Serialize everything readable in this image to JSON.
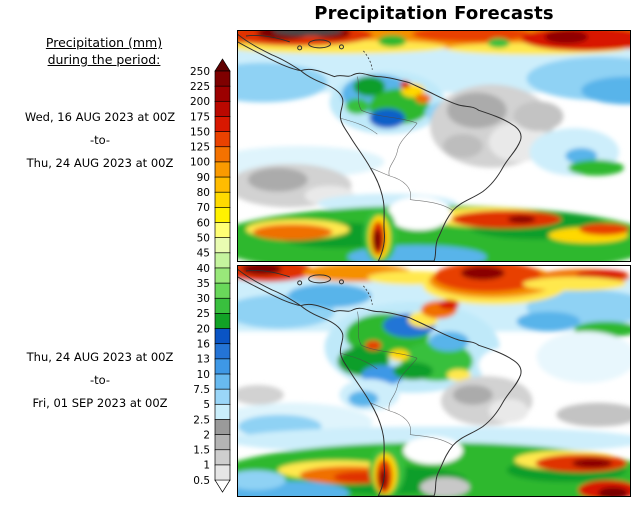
{
  "title": "Precipitation Forecasts",
  "legend": {
    "heading_line1": "Precipitation (mm)",
    "heading_line2": "during the period:",
    "boundaries": [
      "250",
      "225",
      "200",
      "175",
      "150",
      "125",
      "100",
      "90",
      "80",
      "70",
      "60",
      "50",
      "45",
      "40",
      "35",
      "30",
      "25",
      "20",
      "16",
      "13",
      "10",
      "7.5",
      "5",
      "2.5",
      "2",
      "1.5",
      "1",
      "0.5"
    ],
    "colors": [
      "#600000",
      "#7e0000",
      "#9c0000",
      "#ba0800",
      "#d81800",
      "#ea4200",
      "#f47200",
      "#fa9a00",
      "#ffbc00",
      "#ffda00",
      "#fff200",
      "#ffff74",
      "#e9fcb2",
      "#c5f49e",
      "#99e87a",
      "#69d85a",
      "#39c03e",
      "#12a226",
      "#0a54c4",
      "#2474d6",
      "#3e98e6",
      "#68baf0",
      "#9ad6f8",
      "#caeefb",
      "#9a9a9a",
      "#b4b4b4",
      "#cecece",
      "#e6e6e6",
      "#ffffff"
    ],
    "units": "mm"
  },
  "periods": [
    {
      "from": "Wed, 16 AUG 2023 at 00Z",
      "separator": "-to-",
      "to": "Thu, 24 AUG 2023 at 00Z"
    },
    {
      "from": "Thu, 24 AUG 2023 at 00Z",
      "separator": "-to-",
      "to": "Fri, 01 SEP 2023 at 00Z"
    }
  ]
}
